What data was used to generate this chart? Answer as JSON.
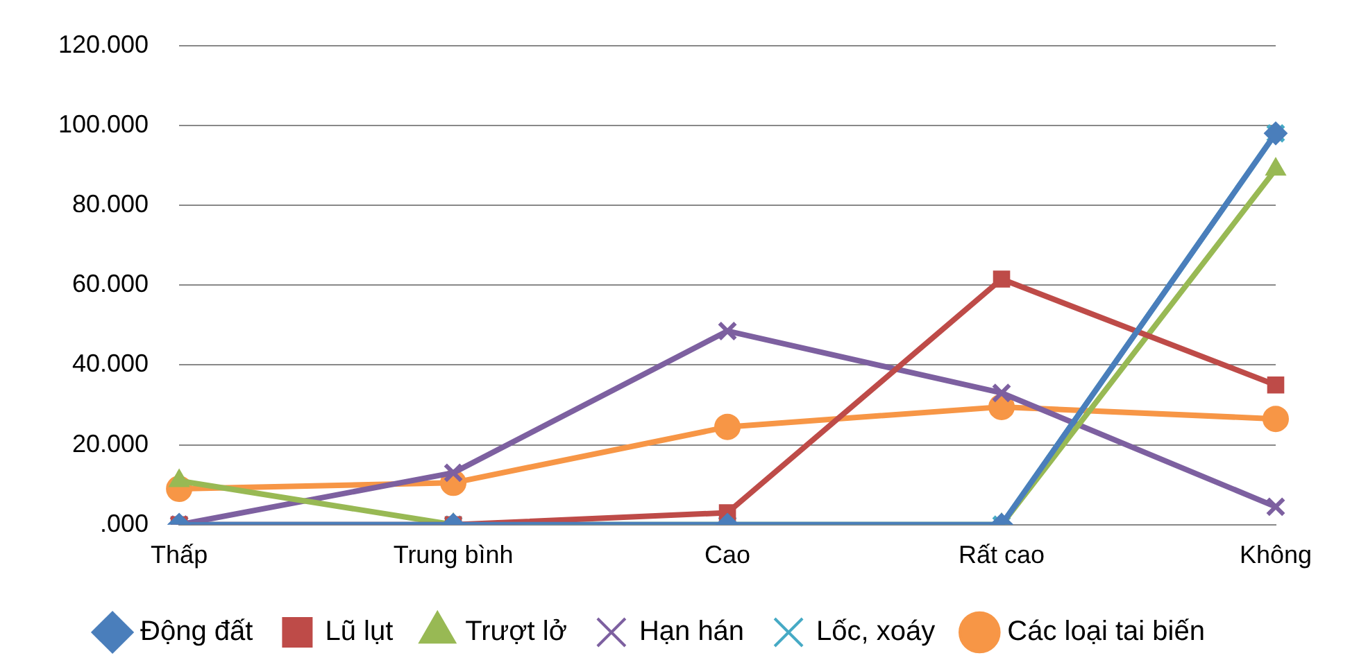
{
  "chart_data": {
    "type": "line",
    "categories": [
      "Thấp",
      "Trung bình",
      "Cao",
      "Rất cao",
      "Không"
    ],
    "series": [
      {
        "name": "Động đất",
        "color": "#4a7ebb",
        "marker": "diamond",
        "values": [
          0,
          0,
          0,
          0,
          98000
        ]
      },
      {
        "name": "Lũ lụt",
        "color": "#be4b48",
        "marker": "square",
        "values": [
          0,
          0,
          3000,
          61500,
          35000
        ]
      },
      {
        "name": "Trượt lở",
        "color": "#98b954",
        "marker": "triangle",
        "values": [
          11000,
          0,
          0,
          0,
          89000
        ]
      },
      {
        "name": "Hạn hán",
        "color": "#7d60a0",
        "marker": "cross",
        "values": [
          0,
          13000,
          48500,
          33000,
          4500
        ]
      },
      {
        "name": "Lốc, xoáy",
        "color": "#46aac5",
        "marker": "cross",
        "values": [
          0,
          0,
          0,
          0,
          98000
        ]
      },
      {
        "name": "Các loại tai biến",
        "color": "#f79646",
        "marker": "circle",
        "values": [
          9000,
          10500,
          24500,
          29500,
          26500
        ]
      }
    ],
    "ylim": [
      0,
      120000
    ],
    "yticks": [
      {
        "value": 0,
        "label": ".000"
      },
      {
        "value": 20000,
        "label": "20.000"
      },
      {
        "value": 40000,
        "label": "40.000"
      },
      {
        "value": 60000,
        "label": "60.000"
      },
      {
        "value": 80000,
        "label": "80.000"
      },
      {
        "value": 100000,
        "label": "100.000"
      },
      {
        "value": 120000,
        "label": "120.000"
      }
    ],
    "grid": "y",
    "legend": "bottom",
    "line_style": "solid"
  }
}
